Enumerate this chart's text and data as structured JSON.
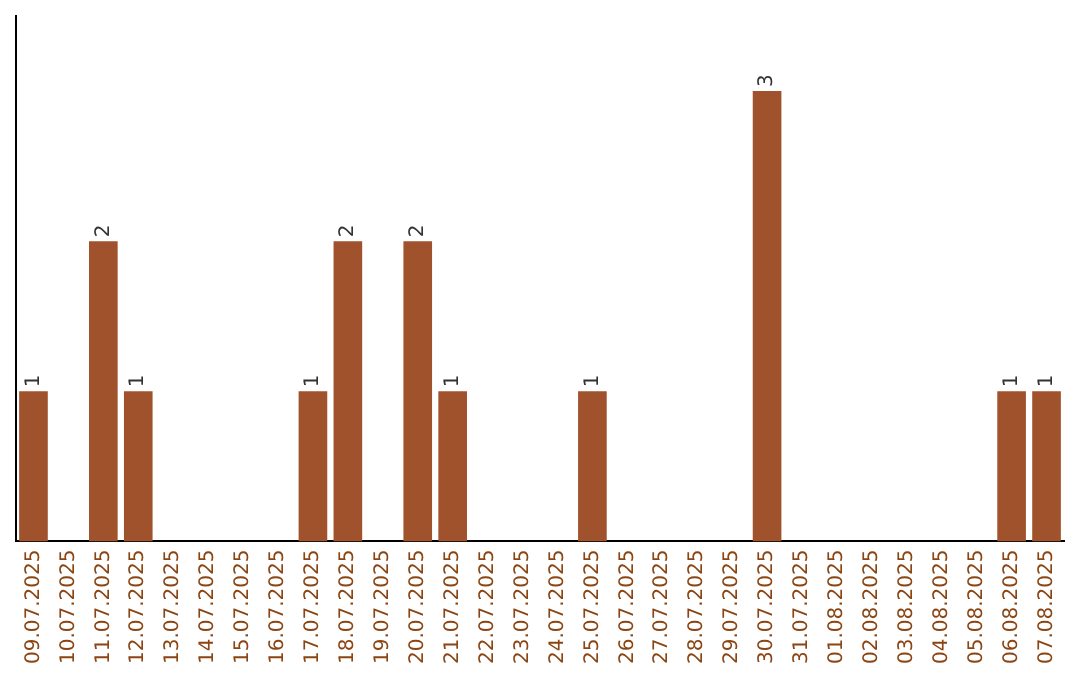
{
  "chart_data": {
    "type": "bar",
    "categories": [
      "09.07.2025",
      "10.07.2025",
      "11.07.2025",
      "12.07.2025",
      "13.07.2025",
      "14.07.2025",
      "15.07.2025",
      "16.07.2025",
      "17.07.2025",
      "18.07.2025",
      "19.07.2025",
      "20.07.2025",
      "21.07.2025",
      "22.07.2025",
      "23.07.2025",
      "24.07.2025",
      "25.07.2025",
      "26.07.2025",
      "27.07.2025",
      "28.07.2025",
      "29.07.2025",
      "30.07.2025",
      "31.07.2025",
      "01.08.2025",
      "02.08.2025",
      "03.08.2025",
      "04.08.2025",
      "05.08.2025",
      "06.08.2025",
      "07.08.2025"
    ],
    "values": [
      1,
      0,
      2,
      1,
      0,
      0,
      0,
      0,
      1,
      2,
      0,
      2,
      1,
      0,
      0,
      0,
      1,
      0,
      0,
      0,
      0,
      3,
      0,
      0,
      0,
      0,
      0,
      0,
      1,
      1
    ],
    "value_labels": [
      "1",
      null,
      "2",
      "1",
      null,
      null,
      null,
      null,
      "1",
      "2",
      null,
      "2",
      "1",
      null,
      null,
      null,
      "1",
      null,
      null,
      null,
      null,
      "3",
      null,
      null,
      null,
      null,
      null,
      null,
      "1",
      "1"
    ],
    "color": "#a0522d",
    "tick_labels": "x"
  }
}
